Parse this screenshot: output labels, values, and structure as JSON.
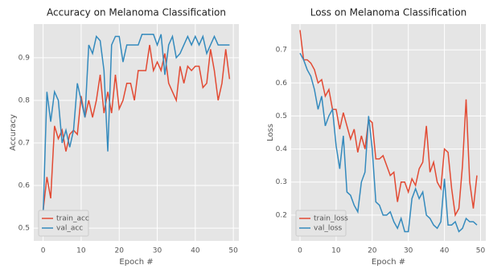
{
  "chart_data": [
    {
      "type": "line",
      "title": "Accuracy on Melanoma Classification",
      "xlabel": "Epoch #",
      "ylabel": "Accuracy",
      "x": [
        0,
        1,
        2,
        3,
        4,
        5,
        6,
        7,
        8,
        9,
        10,
        11,
        12,
        13,
        14,
        15,
        16,
        17,
        18,
        19,
        20,
        21,
        22,
        23,
        24,
        25,
        26,
        27,
        28,
        29,
        30,
        31,
        32,
        33,
        34,
        35,
        36,
        37,
        38,
        39,
        40,
        41,
        42,
        43,
        44,
        45,
        46,
        47,
        48,
        49
      ],
      "series": [
        {
          "name": "train_acc",
          "color": "#E24A33",
          "values": [
            0.54,
            0.62,
            0.57,
            0.74,
            0.71,
            0.73,
            0.68,
            0.72,
            0.73,
            0.72,
            0.81,
            0.76,
            0.8,
            0.76,
            0.8,
            0.86,
            0.77,
            0.82,
            0.77,
            0.86,
            0.78,
            0.8,
            0.84,
            0.84,
            0.8,
            0.87,
            0.87,
            0.87,
            0.93,
            0.87,
            0.89,
            0.87,
            0.91,
            0.84,
            0.82,
            0.8,
            0.88,
            0.84,
            0.88,
            0.87,
            0.88,
            0.88,
            0.83,
            0.84,
            0.92,
            0.87,
            0.8,
            0.84,
            0.92,
            0.85
          ]
        },
        {
          "name": "val_acc",
          "color": "#348ABD",
          "values": [
            0.53,
            0.82,
            0.75,
            0.82,
            0.8,
            0.7,
            0.73,
            0.69,
            0.73,
            0.84,
            0.8,
            0.76,
            0.93,
            0.91,
            0.95,
            0.94,
            0.87,
            0.68,
            0.93,
            0.95,
            0.95,
            0.89,
            0.93,
            0.93,
            0.93,
            0.93,
            0.955,
            0.955,
            0.955,
            0.955,
            0.93,
            0.955,
            0.86,
            0.93,
            0.95,
            0.9,
            0.91,
            0.93,
            0.95,
            0.93,
            0.95,
            0.93,
            0.95,
            0.91,
            0.93,
            0.95,
            0.93,
            0.93,
            0.93,
            0.93
          ]
        }
      ],
      "xlim": [
        -2.45,
        51.45
      ],
      "xticks": [
        0,
        10,
        20,
        30,
        40,
        50
      ],
      "ylim": [
        0.47,
        0.979
      ],
      "yticks": [
        0.5,
        0.6,
        0.7,
        0.8,
        0.9
      ],
      "grid": true,
      "legend": "lower left"
    },
    {
      "type": "line",
      "title": "Loss on Melanoma Classification",
      "xlabel": "Epoch #",
      "ylabel": "Loss",
      "x": [
        0,
        1,
        2,
        3,
        4,
        5,
        6,
        7,
        8,
        9,
        10,
        11,
        12,
        13,
        14,
        15,
        16,
        17,
        18,
        19,
        20,
        21,
        22,
        23,
        24,
        25,
        26,
        27,
        28,
        29,
        30,
        31,
        32,
        33,
        34,
        35,
        36,
        37,
        38,
        39,
        40,
        41,
        42,
        43,
        44,
        45,
        46,
        47,
        48,
        49
      ],
      "series": [
        {
          "name": "train_loss",
          "color": "#E24A33",
          "values": [
            0.76,
            0.67,
            0.67,
            0.66,
            0.64,
            0.6,
            0.61,
            0.56,
            0.58,
            0.52,
            0.52,
            0.46,
            0.51,
            0.47,
            0.43,
            0.46,
            0.39,
            0.44,
            0.4,
            0.49,
            0.48,
            0.37,
            0.37,
            0.38,
            0.35,
            0.32,
            0.33,
            0.24,
            0.3,
            0.3,
            0.27,
            0.31,
            0.29,
            0.34,
            0.36,
            0.47,
            0.33,
            0.36,
            0.3,
            0.28,
            0.4,
            0.39,
            0.28,
            0.2,
            0.22,
            0.35,
            0.55,
            0.3,
            0.22,
            0.32
          ]
        },
        {
          "name": "val_loss",
          "color": "#348ABD",
          "values": [
            0.69,
            0.67,
            0.64,
            0.62,
            0.58,
            0.52,
            0.56,
            0.47,
            0.5,
            0.52,
            0.41,
            0.34,
            0.44,
            0.27,
            0.26,
            0.23,
            0.21,
            0.3,
            0.33,
            0.5,
            0.4,
            0.24,
            0.23,
            0.2,
            0.2,
            0.21,
            0.18,
            0.16,
            0.19,
            0.15,
            0.15,
            0.25,
            0.28,
            0.25,
            0.27,
            0.2,
            0.19,
            0.17,
            0.16,
            0.18,
            0.31,
            0.17,
            0.17,
            0.18,
            0.15,
            0.16,
            0.19,
            0.18,
            0.18,
            0.17
          ]
        }
      ],
      "xlim": [
        -2.45,
        51.45
      ],
      "xticks": [
        0,
        10,
        20,
        30,
        40,
        50
      ],
      "ylim": [
        0.122,
        0.778
      ],
      "yticks": [
        0.2,
        0.3,
        0.4,
        0.5,
        0.6,
        0.7
      ],
      "grid": true,
      "legend": "lower left"
    }
  ]
}
